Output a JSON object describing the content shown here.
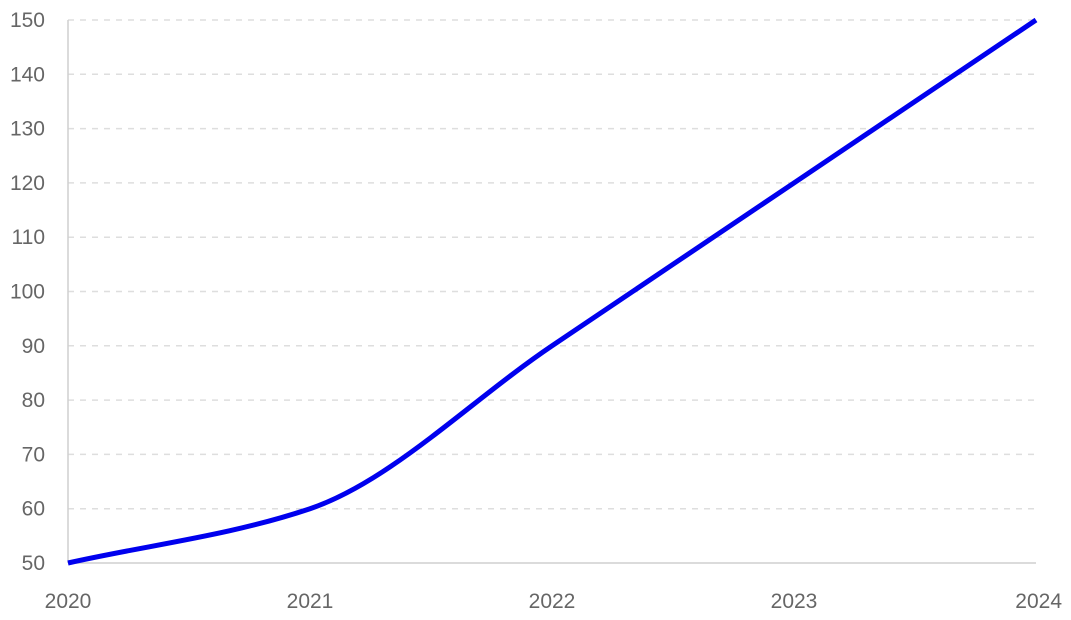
{
  "chart_data": {
    "type": "line",
    "title": "",
    "xlabel": "",
    "ylabel": "",
    "x_categories": [
      "2020",
      "2021",
      "2022",
      "2023",
      "2024"
    ],
    "series": [
      {
        "values": [
          50,
          60,
          90,
          120,
          150
        ],
        "color": "#0000ee"
      }
    ],
    "ylim": [
      50,
      150
    ],
    "y_ticks": [
      50,
      60,
      70,
      80,
      90,
      100,
      110,
      120,
      130,
      140,
      150
    ],
    "grid": true,
    "grid_style": "dashed",
    "legend": "none",
    "smooth": true
  }
}
